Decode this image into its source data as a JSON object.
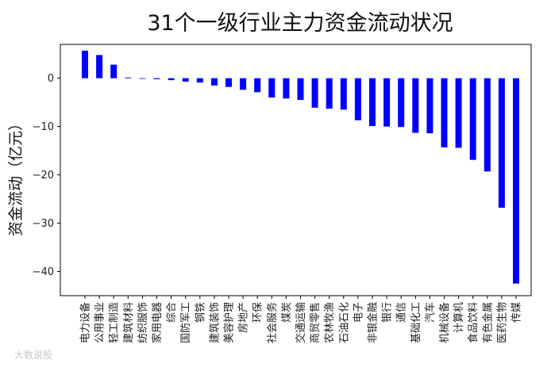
{
  "watermark": "大数说股",
  "chart_data": {
    "type": "bar",
    "title": "31个一级行业主力资金流动状况",
    "xlabel": "",
    "ylabel": "资金流动（亿元）",
    "ylim": [
      -45,
      7
    ],
    "yticks": [
      0,
      -10,
      -20,
      -30,
      -40
    ],
    "bar_color": "#0000ff",
    "grid": false,
    "categories": [
      "电力设备",
      "公用事业",
      "轻工制造",
      "建筑材料",
      "纺织服饰",
      "家用电器",
      "综合",
      "国防军工",
      "钢铁",
      "建筑装饰",
      "美容护理",
      "房地产",
      "环保",
      "社会服务",
      "煤炭",
      "交通运输",
      "商贸零售",
      "农林牧渔",
      "石油石化",
      "电子",
      "非银金融",
      "银行",
      "通信",
      "基础化工",
      "汽车",
      "机械设备",
      "计算机",
      "食品饮料",
      "有色金属",
      "医药生物",
      "传媒"
    ],
    "values": [
      5.7,
      4.8,
      2.8,
      0.15,
      -0.1,
      -0.2,
      -0.4,
      -0.7,
      -0.9,
      -1.5,
      -1.8,
      -2.4,
      -2.9,
      -4.0,
      -4.2,
      -4.5,
      -6.1,
      -6.3,
      -6.5,
      -8.7,
      -9.9,
      -10.0,
      -10.1,
      -11.3,
      -11.4,
      -14.3,
      -14.4,
      -16.9,
      -19.3,
      -26.8,
      -42.5
    ]
  }
}
